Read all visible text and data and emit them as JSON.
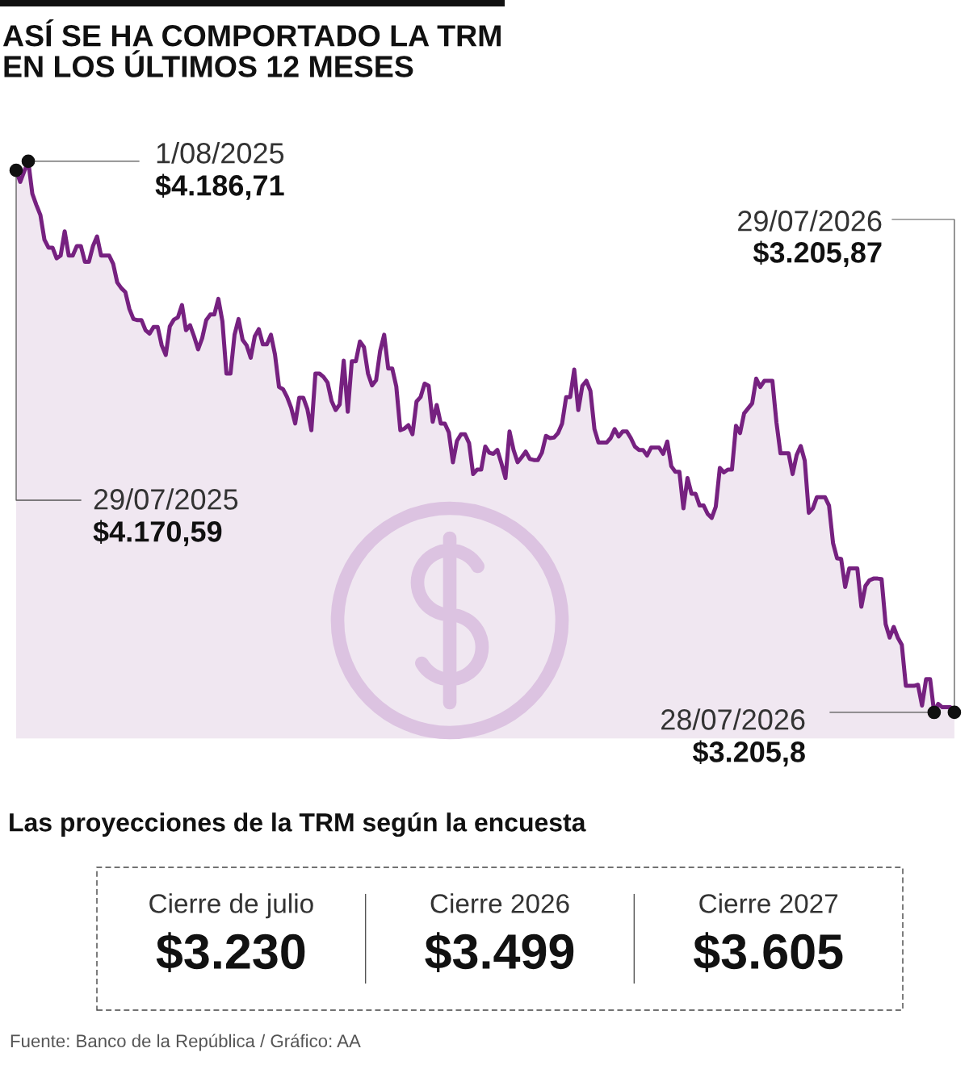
{
  "chart_data": [
    {
      "type": "area",
      "title": "ASÍ SE HA COMPORTADO LA TRM\nEN LOS ÚLTIMOS 12 MESES",
      "categories": [
        null,
        null,
        null,
        null,
        null,
        null,
        null,
        null,
        null,
        null,
        null,
        null,
        null,
        null,
        null,
        null,
        null,
        null,
        null,
        null,
        null,
        null,
        null,
        null,
        null,
        null,
        null,
        null,
        null,
        null,
        null,
        null,
        null,
        null,
        null,
        null,
        null,
        null,
        null,
        null,
        null,
        null,
        null,
        null,
        null,
        null,
        null,
        null,
        null,
        null,
        null,
        null,
        null,
        null,
        null,
        null,
        null,
        null,
        null,
        null,
        null,
        null,
        null,
        null,
        null,
        null,
        null,
        null,
        null,
        null,
        null,
        null,
        null,
        null,
        null,
        null,
        null,
        null,
        null,
        null,
        null,
        null,
        null,
        null,
        null,
        null,
        null,
        null,
        null,
        null,
        null,
        null,
        null,
        null,
        null,
        null,
        null,
        null,
        null,
        null,
        null,
        null,
        null,
        null,
        null,
        null,
        null,
        null,
        null,
        null,
        null,
        null,
        null,
        null,
        null,
        null,
        null,
        null,
        null,
        null,
        null,
        null,
        null,
        null,
        null,
        null,
        null,
        null,
        null,
        null,
        null,
        null,
        null,
        null,
        null,
        null,
        null,
        null,
        null,
        null,
        null,
        null,
        null,
        null,
        null,
        null,
        null,
        null,
        null,
        null,
        null,
        null,
        null,
        null,
        null,
        null,
        null,
        null,
        null,
        null,
        null,
        null,
        null,
        null,
        null,
        null,
        null,
        null,
        null,
        null,
        null,
        null,
        null,
        null,
        null,
        null,
        null,
        null,
        null,
        null,
        null,
        null,
        null,
        null,
        null,
        null,
        null,
        null,
        null,
        null,
        null,
        null,
        null,
        null,
        null,
        null,
        null,
        null,
        null,
        null,
        null,
        null,
        null,
        null,
        null,
        null,
        null,
        null,
        null,
        null,
        null,
        null,
        null,
        null,
        null,
        null,
        null,
        null,
        null,
        null,
        null,
        null,
        null,
        null,
        null,
        null,
        null,
        null,
        null,
        null,
        null,
        null,
        null
      ],
      "values": [
        4170.59,
        4150,
        4169,
        4186.71,
        4129,
        4109,
        4091,
        4047,
        4033,
        4033,
        4014,
        4019,
        4062,
        4019,
        4019,
        4036,
        4036,
        4008,
        4008,
        4036,
        4053,
        4019,
        4019,
        4019,
        4004,
        3971,
        3961,
        3954,
        3924,
        3906,
        3904,
        3904,
        3886,
        3880,
        3892,
        3892,
        3859,
        3842,
        3893,
        3905,
        3909,
        3931,
        3886,
        3895,
        3875,
        3852,
        3872,
        3904,
        3914,
        3914,
        3942,
        3902,
        3809,
        3809,
        3878,
        3906,
        3869,
        3859,
        3837,
        3875,
        3888,
        3861,
        3861,
        3878,
        3843,
        3785,
        3781,
        3767,
        3748,
        3720,
        3766,
        3766,
        3746,
        3708,
        3809,
        3809,
        3803,
        3793,
        3760,
        3744,
        3754,
        3832,
        3741,
        3831,
        3831,
        3866,
        3856,
        3809,
        3788,
        3797,
        3849,
        3878,
        3818,
        3818,
        3786,
        3708,
        3711,
        3717,
        3701,
        3759,
        3767,
        3791,
        3787,
        3723,
        3753,
        3720,
        3720,
        3704,
        3651,
        3689,
        3701,
        3701,
        3685,
        3630,
        3638,
        3638,
        3679,
        3668,
        3666,
        3673,
        3649,
        3623,
        3706,
        3673,
        3651,
        3660,
        3670,
        3657,
        3655,
        3655,
        3668,
        3698,
        3694,
        3695,
        3703,
        3720,
        3767,
        3767,
        3816,
        3744,
        3787,
        3796,
        3778,
        3710,
        3686,
        3686,
        3686,
        3694,
        3710,
        3697,
        3706,
        3706,
        3694,
        3679,
        3673,
        3673,
        3663,
        3677,
        3677,
        3677,
        3666,
        3688,
        3644,
        3634,
        3634,
        3569,
        3623,
        3595,
        3595,
        3574,
        3574,
        3559,
        3552,
        3572,
        3641,
        3633,
        3638,
        3638,
        3716,
        3703,
        3738,
        3747,
        3756,
        3800,
        3785,
        3796,
        3796,
        3796,
        3722,
        3667,
        3667,
        3667,
        3630,
        3664,
        3680,
        3654,
        3561,
        3569,
        3589,
        3589,
        3589,
        3574,
        3507,
        3480,
        3479,
        3429,
        3462,
        3462,
        3462,
        3394,
        3431,
        3441,
        3444,
        3444,
        3443,
        3363,
        3339,
        3358,
        3339,
        3326,
        3253,
        3253,
        3253,
        3255,
        3218,
        3265,
        3265,
        3205.8,
        3221,
        3215,
        3215,
        3215,
        3205.87
      ],
      "value_labels": [
        "$4.170,59",
        null,
        null,
        "$4.186,71",
        null,
        null,
        null,
        null,
        null,
        null,
        null,
        null,
        null,
        null,
        null,
        null,
        null,
        null,
        null,
        null,
        null,
        null,
        null,
        null,
        null,
        null,
        null,
        null,
        null,
        null,
        null,
        null,
        null,
        null,
        null,
        null,
        null,
        null,
        null,
        null,
        null,
        null,
        null,
        null,
        null,
        null,
        null,
        null,
        null,
        null,
        null,
        null,
        null,
        null,
        null,
        null,
        null,
        null,
        null,
        null,
        null,
        null,
        null,
        null,
        null,
        null,
        null,
        null,
        null,
        null,
        null,
        null,
        null,
        null,
        null,
        null,
        null,
        null,
        null,
        null,
        null,
        null,
        null,
        null,
        null,
        null,
        null,
        null,
        null,
        null,
        null,
        null,
        null,
        null,
        null,
        null,
        null,
        null,
        null,
        null,
        null,
        null,
        null,
        null,
        null,
        null,
        null,
        null,
        null,
        null,
        null,
        null,
        null,
        null,
        null,
        null,
        null,
        null,
        null,
        null,
        null,
        null,
        null,
        null,
        null,
        null,
        null,
        null,
        null,
        null,
        null,
        null,
        null,
        null,
        null,
        null,
        null,
        null,
        null,
        null,
        null,
        null,
        null,
        null,
        null,
        null,
        null,
        null,
        null,
        null,
        null,
        null,
        null,
        null,
        null,
        null,
        null,
        null,
        null,
        null,
        null,
        null,
        null,
        null,
        null,
        null,
        null,
        null,
        null,
        null,
        null,
        null,
        null,
        null,
        null,
        null,
        null,
        null,
        null,
        null,
        null,
        null,
        null,
        null,
        null,
        null,
        null,
        null,
        null,
        null,
        null,
        null,
        null,
        null,
        null,
        null,
        null,
        null,
        null,
        null,
        null,
        null,
        null,
        null,
        null,
        null,
        null,
        null,
        null,
        null,
        null,
        null,
        null,
        null,
        null,
        null,
        null,
        null,
        null,
        null,
        null,
        null,
        null,
        null,
        null,
        null,
        null,
        "$3.205,8",
        null,
        null,
        null,
        null,
        "$3.205,87"
      ],
      "color": "#762180",
      "tick_labels": false,
      "annotations": [
        "29/07/2025",
        "1/08/2025",
        "28/07/2026",
        "29/07/2026",
        "Fuente: Banco de la República / Gráfico: AA"
      ]
    },
    {
      "type": "other",
      "title": "Las proyecciones de la TRM según la encuesta",
      "categories": [
        "Cierre de julio",
        "Cierre 2026",
        "Cierre 2027"
      ],
      "value_labels": [
        "$3.230",
        "$3.499",
        "$3.605"
      ]
    }
  ]
}
